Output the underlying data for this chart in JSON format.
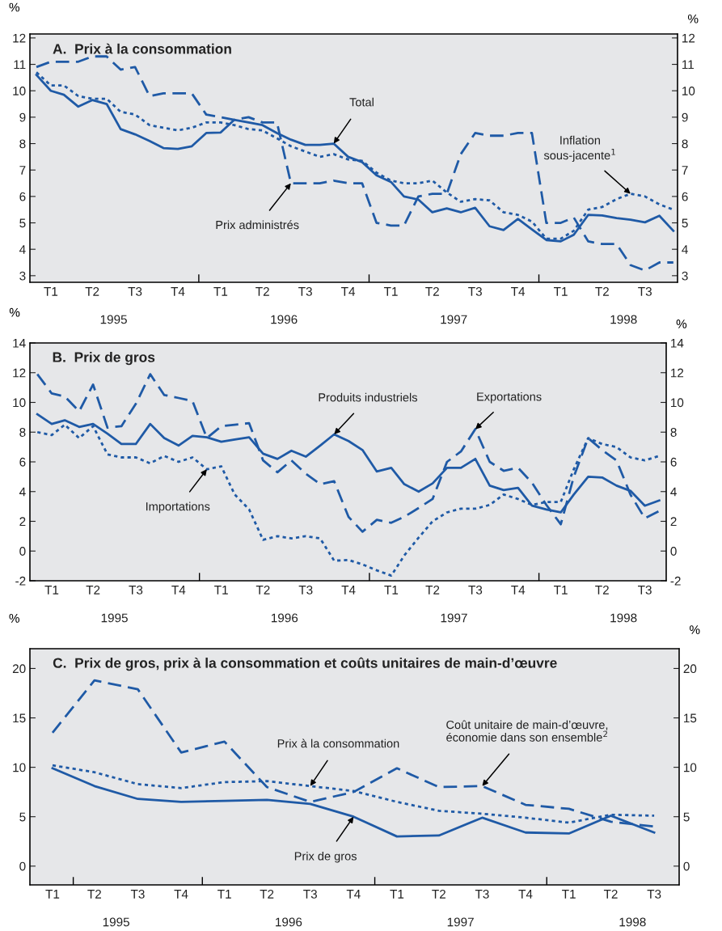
{
  "chart_data": [
    {
      "type": "line",
      "title": "A.  Prix à la consommation",
      "ylabel": "%",
      "y2label": "%",
      "x": [
        "1995-01",
        "1995-02",
        "1995-03",
        "1995-04",
        "1995-05",
        "1995-06",
        "1995-07",
        "1995-08",
        "1995-09",
        "1995-10",
        "1995-11",
        "1995-12",
        "1996-01",
        "1996-02",
        "1996-03",
        "1996-04",
        "1996-05",
        "1996-06",
        "1996-07",
        "1996-08",
        "1996-09",
        "1996-10",
        "1996-11",
        "1996-12",
        "1997-01",
        "1997-02",
        "1997-03",
        "1997-04",
        "1997-05",
        "1997-06",
        "1997-07",
        "1997-08",
        "1997-09",
        "1997-10",
        "1997-11",
        "1997-12",
        "1998-01",
        "1998-02",
        "1998-03",
        "1998-04",
        "1998-05",
        "1998-06",
        "1998-07",
        "1998-08",
        "1998-09",
        "1998-10"
      ],
      "series": [
        {
          "color": "#1f5aa6",
          "line_style": "dashed",
          "values": [
            10.9,
            11.1,
            11.1,
            11.1,
            11.3,
            11.3,
            10.8,
            10.9,
            9.8,
            9.9,
            9.9,
            9.9,
            9.1,
            9.0,
            8.9,
            9.0,
            8.8,
            8.8,
            6.5,
            6.5,
            6.5,
            6.6,
            6.5,
            6.5,
            5.0,
            4.9,
            4.9,
            6.0,
            6.1,
            6.1,
            7.6,
            8.4,
            8.3,
            8.3,
            8.4,
            8.4,
            5.0,
            5.0,
            5.2,
            4.3,
            4.2,
            4.2,
            3.4,
            3.2,
            3.5,
            3.5
          ]
        },
        {
          "color": "#1f5aa6",
          "line_style": "dotted",
          "values": [
            10.7,
            10.2,
            10.2,
            9.8,
            9.7,
            9.7,
            9.2,
            9.1,
            8.7,
            8.6,
            8.5,
            8.6,
            8.8,
            8.8,
            8.7,
            8.55,
            8.5,
            8.2,
            7.9,
            7.7,
            7.5,
            7.6,
            7.4,
            7.35,
            6.9,
            6.6,
            6.5,
            6.5,
            6.6,
            6.15,
            5.8,
            5.9,
            5.85,
            5.4,
            5.3,
            5.05,
            4.4,
            4.4,
            4.7,
            5.5,
            5.6,
            5.9,
            6.1,
            6.0,
            5.7,
            5.5
          ]
        },
        {
          "color": "#1f5aa6",
          "line_style": "solid",
          "values": [
            10.6,
            10.0,
            9.85,
            9.4,
            9.65,
            9.5,
            8.55,
            8.35,
            8.1,
            7.83,
            7.8,
            7.9,
            8.4,
            8.42,
            8.9,
            8.8,
            8.7,
            8.4,
            8.15,
            7.95,
            7.95,
            8.0,
            7.5,
            7.3,
            6.8,
            6.55,
            6.0,
            5.88,
            5.4,
            5.55,
            5.4,
            5.57,
            4.87,
            4.73,
            5.15,
            4.75,
            4.35,
            4.3,
            4.55,
            5.3,
            5.28,
            5.18,
            5.12,
            5.02,
            5.27,
            4.7
          ]
        }
      ],
      "xlim": [
        "1994-12-18",
        "1998-10-10"
      ],
      "xticks": [
        {
          "value": "1995-12-16",
          "label": null
        },
        {
          "value": "1996-12-16",
          "label": null
        },
        {
          "value": "1997-12-16",
          "label": null
        },
        {
          "value": "1995-02",
          "label": "T1"
        },
        {
          "value": "1995-05",
          "label": "T2"
        },
        {
          "value": "1995-08",
          "label": "T3"
        },
        {
          "value": "1995-11",
          "label": "T4"
        },
        {
          "value": "1996-02",
          "label": "T1"
        },
        {
          "value": "1996-05",
          "label": "T2"
        },
        {
          "value": "1996-08",
          "label": "T3"
        },
        {
          "value": "1996-11",
          "label": "T4"
        },
        {
          "value": "1997-02",
          "label": "T1"
        },
        {
          "value": "1997-05",
          "label": "T2"
        },
        {
          "value": "1997-08",
          "label": "T3"
        },
        {
          "value": "1997-11",
          "label": "T4"
        },
        {
          "value": "1998-02",
          "label": "T1"
        },
        {
          "value": "1998-05",
          "label": "T2"
        },
        {
          "value": "1998-08",
          "label": "T3"
        }
      ],
      "ylim": [
        2.75,
        12.15
      ],
      "yticks": [
        3,
        4,
        5,
        6,
        7,
        8,
        9,
        10,
        11,
        12
      ],
      "y2lim": [
        2.75,
        12.15
      ],
      "y2ticks": [
        3,
        4,
        5,
        6,
        7,
        8,
        9,
        10,
        11,
        12
      ],
      "grid": false,
      "annotations": [
        {
          "text": "Total",
          "x": "1996-10",
          "y": 8.0
        },
        {
          "text": "Prix administrés",
          "x": "1996-07",
          "y": 6.5
        },
        {
          "text": "Inflation\nsous-jacente$^{1}$",
          "x": "1998-07",
          "y": 6.1
        },
        "1995",
        "1996",
        "1997",
        "1998"
      ]
    },
    {
      "type": "line",
      "title": "B.  Prix de gros",
      "ylabel": "%",
      "y2label": "%",
      "x": [
        "1995-01",
        "1995-02",
        "1995-03",
        "1995-04",
        "1995-05",
        "1995-06",
        "1995-07",
        "1995-08",
        "1995-09",
        "1995-10",
        "1995-11",
        "1995-12",
        "1996-01",
        "1996-02",
        "1996-03",
        "1996-04",
        "1996-05",
        "1996-06",
        "1996-07",
        "1996-08",
        "1996-09",
        "1996-10",
        "1996-11",
        "1996-12",
        "1997-01",
        "1997-02",
        "1997-03",
        "1997-04",
        "1997-05",
        "1997-06",
        "1997-07",
        "1997-08",
        "1997-09",
        "1997-10",
        "1997-11",
        "1997-12",
        "1998-01",
        "1998-02",
        "1998-03",
        "1998-04",
        "1998-05",
        "1998-06",
        "1998-07",
        "1998-08",
        "1998-09"
      ],
      "series": [
        {
          "color": "#1f5aa6",
          "line_style": "dashed",
          "values": [
            11.9,
            10.6,
            10.4,
            9.4,
            11.2,
            8.3,
            8.4,
            9.9,
            11.9,
            10.5,
            10.3,
            10.1,
            7.6,
            8.4,
            8.5,
            8.6,
            6.1,
            5.3,
            6.1,
            5.2,
            4.5,
            4.7,
            2.3,
            1.3,
            2.1,
            1.9,
            2.3,
            2.9,
            3.5,
            6.0,
            6.7,
            8.2,
            6.0,
            5.4,
            5.6,
            4.6,
            3.1,
            1.8,
            5.0,
            7.6,
            6.8,
            6.1,
            3.8,
            2.2,
            2.7
          ]
        },
        {
          "color": "#1f5aa6",
          "line_style": "dotted",
          "values": [
            8.0,
            7.8,
            8.5,
            7.6,
            8.4,
            6.5,
            6.3,
            6.3,
            5.9,
            6.4,
            6.0,
            6.3,
            5.5,
            5.7,
            3.8,
            2.8,
            0.75,
            1.0,
            0.85,
            1.0,
            0.85,
            -0.65,
            -0.6,
            -0.9,
            -1.3,
            -1.65,
            -0.3,
            0.9,
            2.0,
            2.6,
            2.85,
            2.85,
            3.1,
            3.8,
            3.5,
            3.1,
            3.3,
            3.3,
            5.5,
            7.6,
            7.2,
            7.0,
            6.3,
            6.1,
            6.4
          ]
        },
        {
          "color": "#1f5aa6",
          "line_style": "solid",
          "values": [
            9.2,
            8.55,
            8.8,
            8.35,
            8.55,
            7.9,
            7.2,
            7.2,
            8.55,
            7.6,
            7.1,
            7.75,
            7.65,
            7.35,
            7.5,
            7.65,
            6.55,
            6.2,
            6.75,
            6.35,
            7.1,
            7.85,
            7.4,
            6.8,
            5.35,
            5.6,
            4.5,
            4.0,
            4.55,
            5.6,
            5.6,
            6.2,
            4.4,
            4.1,
            4.25,
            3.05,
            2.8,
            2.6,
            3.8,
            5.0,
            4.95,
            4.4,
            4.05,
            3.05,
            3.4
          ]
        }
      ],
      "xlim": [
        "1994-12-16",
        "1998-09-16"
      ],
      "xticks": [
        {
          "value": "1995-12-16",
          "label": null
        },
        {
          "value": "1996-12-16",
          "label": null
        },
        {
          "value": "1997-12-16",
          "label": null
        },
        {
          "value": "1995-02",
          "label": "T1"
        },
        {
          "value": "1995-05",
          "label": "T2"
        },
        {
          "value": "1995-08",
          "label": "T3"
        },
        {
          "value": "1995-11",
          "label": "T4"
        },
        {
          "value": "1996-02",
          "label": "T1"
        },
        {
          "value": "1996-05",
          "label": "T2"
        },
        {
          "value": "1996-08",
          "label": "T3"
        },
        {
          "value": "1996-11",
          "label": "T4"
        },
        {
          "value": "1997-02",
          "label": "T1"
        },
        {
          "value": "1997-05",
          "label": "T2"
        },
        {
          "value": "1997-08",
          "label": "T3"
        },
        {
          "value": "1997-11",
          "label": "T4"
        },
        {
          "value": "1998-02",
          "label": "T1"
        },
        {
          "value": "1998-05",
          "label": "T2"
        },
        {
          "value": "1998-08",
          "label": "T3"
        }
      ],
      "ylim": [
        -2,
        14
      ],
      "yticks": [
        -2,
        0,
        2,
        4,
        6,
        8,
        10,
        12,
        14
      ],
      "y2lim": [
        -2,
        14
      ],
      "y2ticks": [
        -2,
        0,
        2,
        4,
        6,
        8,
        10,
        12,
        14
      ],
      "grid": false,
      "annotations": [
        {
          "text": "Produits industriels",
          "x": "1996-10",
          "y": 7.85
        },
        {
          "text": "Exportations",
          "x": "1997-08",
          "y": 8.2
        },
        {
          "text": "Importations",
          "x": "1996-01",
          "y": 5.5
        },
        "1995",
        "1996",
        "1997",
        "1998"
      ]
    },
    {
      "type": "line",
      "title": "C.  Prix de gros, prix à la consommation et coûts unitaires de main-d’œuvre",
      "ylabel": "%",
      "y2label": "%",
      "x": [
        "1995-02",
        "1995-05",
        "1995-08",
        "1995-11",
        "1996-02",
        "1996-05",
        "1996-08",
        "1996-11",
        "1997-02",
        "1997-05",
        "1997-08",
        "1997-11",
        "1998-02",
        "1998-05",
        "1998-08"
      ],
      "series": [
        {
          "color": "#1f5aa6",
          "line_style": "dashed",
          "values": [
            13.5,
            18.8,
            17.9,
            11.5,
            12.6,
            8.0,
            6.5,
            7.5,
            9.9,
            8.0,
            8.1,
            6.2,
            5.8,
            4.5,
            4.0
          ]
        },
        {
          "color": "#1f5aa6",
          "line_style": "dotted",
          "values": [
            10.2,
            9.5,
            8.3,
            7.9,
            8.5,
            8.6,
            8.1,
            7.6,
            6.5,
            5.6,
            5.3,
            4.9,
            4.4,
            5.2,
            5.1
          ]
        },
        {
          "color": "#1f5aa6",
          "line_style": "solid",
          "values": [
            9.9,
            8.1,
            6.8,
            6.5,
            6.6,
            6.7,
            6.3,
            5.0,
            3.0,
            3.1,
            4.9,
            3.4,
            3.3,
            5.1,
            3.4
          ]
        }
      ],
      "xlim": [
        "1994-12-15",
        "1998-09-23"
      ],
      "xticks": [
        {
          "value": "1995-03-17",
          "label": null
        },
        {
          "value": "1995-12-16",
          "label": null
        },
        {
          "value": "1996-12-16",
          "label": null
        },
        {
          "value": "1997-12-16",
          "label": null
        },
        {
          "value": "1995-02",
          "label": "T1"
        },
        {
          "value": "1995-05",
          "label": "T2"
        },
        {
          "value": "1995-08",
          "label": "T3"
        },
        {
          "value": "1995-11",
          "label": "T4"
        },
        {
          "value": "1996-02",
          "label": "T1"
        },
        {
          "value": "1996-05",
          "label": "T2"
        },
        {
          "value": "1996-08",
          "label": "T3"
        },
        {
          "value": "1996-11",
          "label": "T4"
        },
        {
          "value": "1997-02",
          "label": "T1"
        },
        {
          "value": "1997-05",
          "label": "T2"
        },
        {
          "value": "1997-08",
          "label": "T3"
        },
        {
          "value": "1997-11",
          "label": "T4"
        },
        {
          "value": "1998-02",
          "label": "T1"
        },
        {
          "value": "1998-05",
          "label": "T2"
        },
        {
          "value": "1998-08",
          "label": "T3"
        }
      ],
      "ylim": [
        -1.9,
        22
      ],
      "yticks": [
        0,
        5,
        10,
        15,
        20
      ],
      "y2lim": [
        -1.9,
        22
      ],
      "y2ticks": [
        0,
        5,
        10,
        15,
        20
      ],
      "grid": false,
      "annotations": [
        {
          "text": "Prix à la consommation",
          "x": "1996-08",
          "y": 8.1
        },
        {
          "text": "Coût unitaire de main-d’œuvre,\néconomie dans son ensemble$^{2}$",
          "x": "1997-08",
          "y": 8.1
        },
        {
          "text": "Prix de gros",
          "x": "1996-11",
          "y": 5.0
        },
        "1995",
        "1996",
        "1997",
        "1998"
      ]
    }
  ]
}
